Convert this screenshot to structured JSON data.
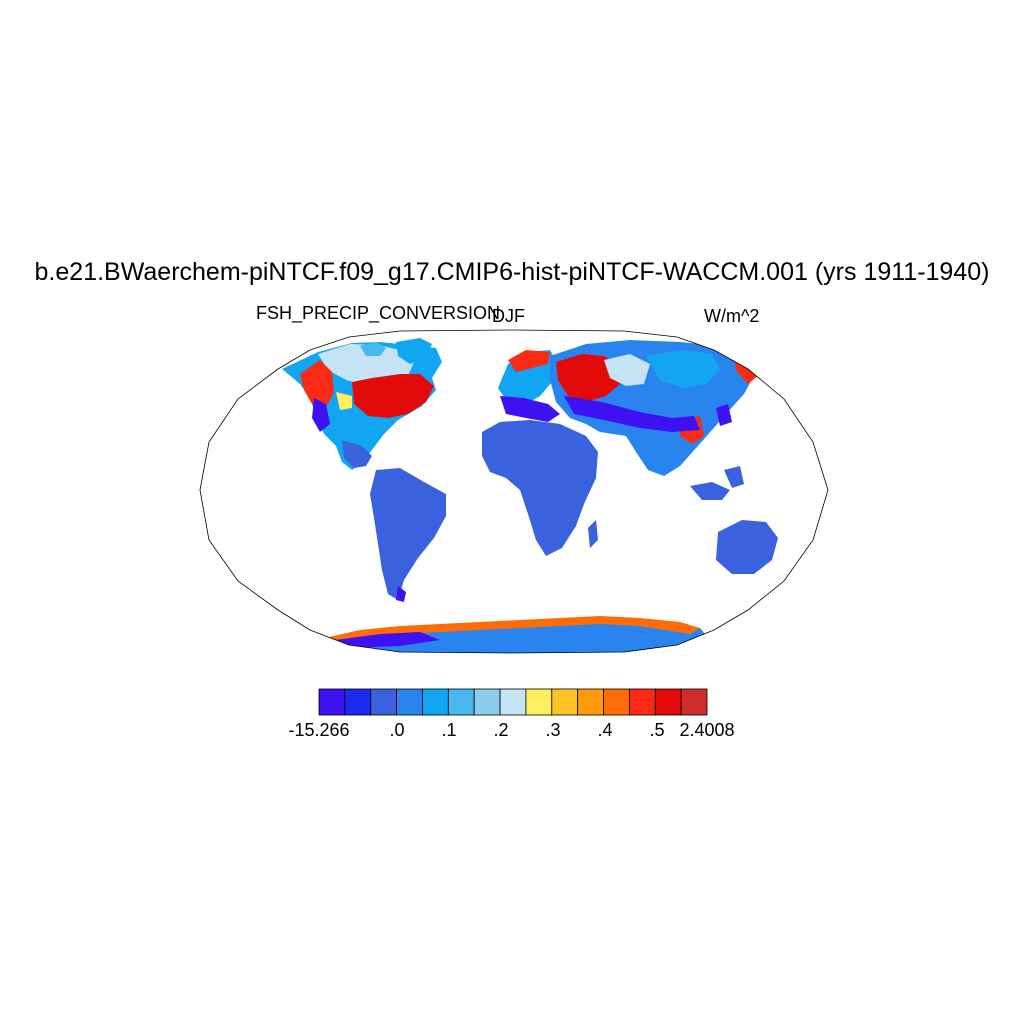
{
  "map": {
    "title": "b.e21.BWaerchem-piNTCF.f09_g17.CMIP6-hist-piNTCF-WACCM.001 (yrs 1911-1940)",
    "variable": "FSH_PRECIP_CONVERSION",
    "season": "DJF",
    "units": "W/m^2",
    "projection": "robinson",
    "ocean_color": "#ffffff",
    "coastline_color": "#000000"
  },
  "colorbar": {
    "colors": [
      "#3e11f2",
      "#1a2af0",
      "#3b62de",
      "#2a84f0",
      "#12a6f2",
      "#47b8f0",
      "#8ccdee",
      "#c4e4f5",
      "#ffee5f",
      "#ffc426",
      "#ff9b0c",
      "#ff6c05",
      "#fb2a14",
      "#e20a0a",
      "#cf2b2b"
    ],
    "labels": [
      "-15.266",
      ".0",
      ".1",
      ".2",
      ".3",
      ".4",
      ".5",
      "2.4008"
    ]
  }
}
